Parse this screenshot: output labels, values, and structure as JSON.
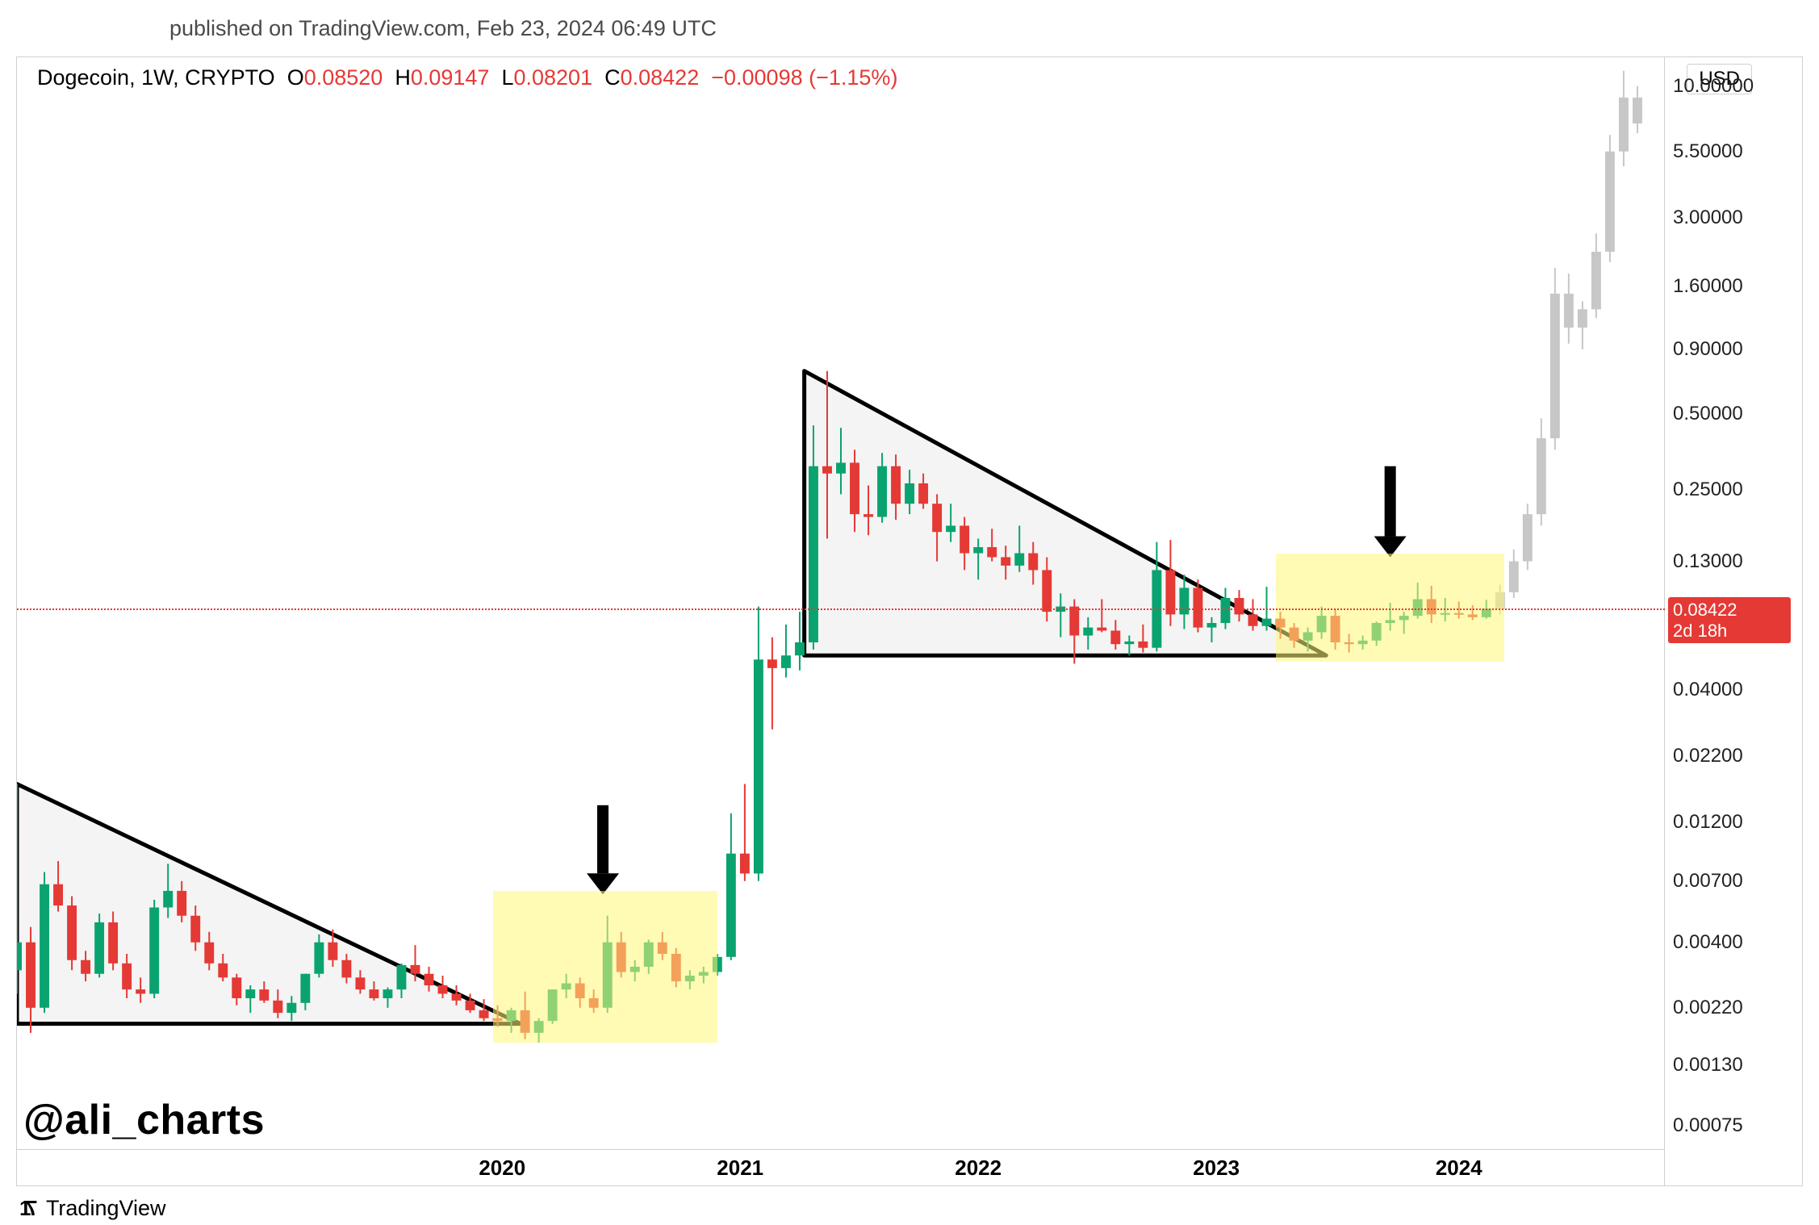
{
  "publish": {
    "text": "published on TradingView.com, Feb 23, 2024 06:49 UTC"
  },
  "header": {
    "symbol": "Dogecoin",
    "timeframe": "1W",
    "exchange": "CRYPTO",
    "o_label": "O",
    "o": "0.08520",
    "h_label": "H",
    "h": "0.09147",
    "l_label": "L",
    "l": "0.08201",
    "c_label": "C",
    "c": "0.08422",
    "change": "−0.00098",
    "change_pct": "(−1.15%)",
    "value_color": "#e53935"
  },
  "currency_badge": "USD",
  "watermark": "@ali_charts",
  "footer_brand": "TradingView",
  "scale": {
    "type": "log",
    "y_min_v": 0.0006,
    "y_max_v": 13.0,
    "yticks": [
      {
        "v": 10.0,
        "label": "10.00000"
      },
      {
        "v": 5.5,
        "label": "5.50000"
      },
      {
        "v": 3.0,
        "label": "3.00000"
      },
      {
        "v": 1.6,
        "label": "1.60000"
      },
      {
        "v": 0.9,
        "label": "0.90000"
      },
      {
        "v": 0.5,
        "label": "0.50000"
      },
      {
        "v": 0.25,
        "label": "0.25000"
      },
      {
        "v": 0.13,
        "label": "0.13000"
      },
      {
        "v": 0.08422,
        "label": "0.08422",
        "is_price": true,
        "sub": "2d 18h"
      },
      {
        "v": 0.04,
        "label": "0.04000"
      },
      {
        "v": 0.022,
        "label": "0.02200"
      },
      {
        "v": 0.012,
        "label": "0.01200"
      },
      {
        "v": 0.007,
        "label": "0.00700"
      },
      {
        "v": 0.004,
        "label": "0.00400"
      },
      {
        "v": 0.0022,
        "label": "0.00220"
      },
      {
        "v": 0.0013,
        "label": "0.00130"
      },
      {
        "v": 0.00075,
        "label": "0.00075"
      }
    ],
    "xticks": [
      {
        "t": 106,
        "label": "2020"
      },
      {
        "t": 158,
        "label": "2021"
      },
      {
        "t": 210,
        "label": "2022"
      },
      {
        "t": 262,
        "label": "2023"
      },
      {
        "t": 315,
        "label": "2024"
      }
    ],
    "t_min": 0,
    "t_max": 360
  },
  "colors": {
    "up": "#0aa36f",
    "down": "#e53935",
    "future": "#c7c7c7",
    "triangle_fill": "rgba(230,230,230,0.45)",
    "triangle_stroke": "#000000",
    "highlight": "rgba(255,247,120,0.55)",
    "arrow": "#000000",
    "grid": "#d0d0d0",
    "price_tag_bg": "#e53935",
    "price_tag_fg": "#ffffff"
  },
  "highlights": [
    {
      "t0": 104,
      "t1": 153,
      "v_lo": 0.0016,
      "v_hi": 0.0064
    },
    {
      "t0": 275,
      "t1": 325,
      "v_lo": 0.052,
      "v_hi": 0.14
    }
  ],
  "triangles": [
    {
      "apex_t": 0,
      "apex_v": 0.017,
      "tip_t": 110,
      "base_v": 0.0019
    },
    {
      "apex_t": 172,
      "apex_v": 0.74,
      "tip_t": 286,
      "base_v": 0.055
    }
  ],
  "arrows": [
    {
      "t": 128,
      "v_top": 0.014,
      "v_bot": 0.0062
    },
    {
      "t": 300,
      "v_top": 0.31,
      "v_bot": 0.135
    }
  ],
  "candles": [
    {
      "t": 0,
      "o": 0.0031,
      "h": 0.017,
      "l": 0.0025,
      "c": 0.004
    },
    {
      "t": 3,
      "o": 0.004,
      "h": 0.0046,
      "l": 0.00175,
      "c": 0.0022
    },
    {
      "t": 6,
      "o": 0.0022,
      "h": 0.0076,
      "l": 0.0021,
      "c": 0.0068
    },
    {
      "t": 9,
      "o": 0.0068,
      "h": 0.0084,
      "l": 0.0053,
      "c": 0.0056
    },
    {
      "t": 12,
      "o": 0.0056,
      "h": 0.0061,
      "l": 0.0031,
      "c": 0.0034
    },
    {
      "t": 15,
      "o": 0.0034,
      "h": 0.0037,
      "l": 0.0028,
      "c": 0.003
    },
    {
      "t": 18,
      "o": 0.003,
      "h": 0.0052,
      "l": 0.0029,
      "c": 0.0048
    },
    {
      "t": 21,
      "o": 0.0048,
      "h": 0.0053,
      "l": 0.0031,
      "c": 0.0033
    },
    {
      "t": 24,
      "o": 0.0033,
      "h": 0.0036,
      "l": 0.0024,
      "c": 0.0026
    },
    {
      "t": 27,
      "o": 0.0026,
      "h": 0.0029,
      "l": 0.0023,
      "c": 0.0025
    },
    {
      "t": 30,
      "o": 0.0025,
      "h": 0.0059,
      "l": 0.0024,
      "c": 0.0055
    },
    {
      "t": 33,
      "o": 0.0055,
      "h": 0.0082,
      "l": 0.005,
      "c": 0.0064
    },
    {
      "t": 36,
      "o": 0.0064,
      "h": 0.007,
      "l": 0.0048,
      "c": 0.0051
    },
    {
      "t": 39,
      "o": 0.0051,
      "h": 0.0056,
      "l": 0.0037,
      "c": 0.004
    },
    {
      "t": 42,
      "o": 0.004,
      "h": 0.0044,
      "l": 0.0031,
      "c": 0.0033
    },
    {
      "t": 45,
      "o": 0.0033,
      "h": 0.0036,
      "l": 0.0028,
      "c": 0.0029
    },
    {
      "t": 48,
      "o": 0.0029,
      "h": 0.003,
      "l": 0.00225,
      "c": 0.0024
    },
    {
      "t": 51,
      "o": 0.0024,
      "h": 0.0027,
      "l": 0.0021,
      "c": 0.0026
    },
    {
      "t": 54,
      "o": 0.0026,
      "h": 0.0028,
      "l": 0.0023,
      "c": 0.00235
    },
    {
      "t": 57,
      "o": 0.00235,
      "h": 0.0026,
      "l": 0.002,
      "c": 0.0021
    },
    {
      "t": 60,
      "o": 0.0021,
      "h": 0.00245,
      "l": 0.00195,
      "c": 0.0023
    },
    {
      "t": 63,
      "o": 0.0023,
      "h": 0.003,
      "l": 0.00215,
      "c": 0.003
    },
    {
      "t": 66,
      "o": 0.003,
      "h": 0.0043,
      "l": 0.0029,
      "c": 0.004
    },
    {
      "t": 69,
      "o": 0.004,
      "h": 0.0045,
      "l": 0.0032,
      "c": 0.0034
    },
    {
      "t": 72,
      "o": 0.0034,
      "h": 0.0036,
      "l": 0.00275,
      "c": 0.0029
    },
    {
      "t": 75,
      "o": 0.0029,
      "h": 0.0031,
      "l": 0.0025,
      "c": 0.0026
    },
    {
      "t": 78,
      "o": 0.0026,
      "h": 0.0028,
      "l": 0.00235,
      "c": 0.0024
    },
    {
      "t": 81,
      "o": 0.0024,
      "h": 0.00265,
      "l": 0.0022,
      "c": 0.0026
    },
    {
      "t": 84,
      "o": 0.0026,
      "h": 0.0033,
      "l": 0.0024,
      "c": 0.00325
    },
    {
      "t": 87,
      "o": 0.00325,
      "h": 0.0039,
      "l": 0.0028,
      "c": 0.003
    },
    {
      "t": 90,
      "o": 0.003,
      "h": 0.0032,
      "l": 0.00255,
      "c": 0.0027
    },
    {
      "t": 93,
      "o": 0.0027,
      "h": 0.00295,
      "l": 0.0024,
      "c": 0.0025
    },
    {
      "t": 96,
      "o": 0.0025,
      "h": 0.0027,
      "l": 0.00225,
      "c": 0.00235
    },
    {
      "t": 99,
      "o": 0.00235,
      "h": 0.0025,
      "l": 0.0021,
      "c": 0.00215
    },
    {
      "t": 102,
      "o": 0.00215,
      "h": 0.00238,
      "l": 0.00195,
      "c": 0.002
    },
    {
      "t": 105,
      "o": 0.002,
      "h": 0.00225,
      "l": 0.00185,
      "c": 0.00195
    },
    {
      "t": 108,
      "o": 0.00195,
      "h": 0.0022,
      "l": 0.00175,
      "c": 0.00215
    },
    {
      "t": 111,
      "o": 0.00215,
      "h": 0.00255,
      "l": 0.00165,
      "c": 0.00175
    },
    {
      "t": 114,
      "o": 0.00175,
      "h": 0.002,
      "l": 0.0016,
      "c": 0.00195
    },
    {
      "t": 117,
      "o": 0.00195,
      "h": 0.0026,
      "l": 0.0019,
      "c": 0.0026
    },
    {
      "t": 120,
      "o": 0.0026,
      "h": 0.003,
      "l": 0.0024,
      "c": 0.00275
    },
    {
      "t": 123,
      "o": 0.00275,
      "h": 0.0029,
      "l": 0.0022,
      "c": 0.0024
    },
    {
      "t": 126,
      "o": 0.0024,
      "h": 0.0026,
      "l": 0.0021,
      "c": 0.0022
    },
    {
      "t": 129,
      "o": 0.0022,
      "h": 0.0051,
      "l": 0.0021,
      "c": 0.004
    },
    {
      "t": 132,
      "o": 0.004,
      "h": 0.0044,
      "l": 0.0029,
      "c": 0.00305
    },
    {
      "t": 135,
      "o": 0.00305,
      "h": 0.0034,
      "l": 0.0028,
      "c": 0.0032
    },
    {
      "t": 138,
      "o": 0.0032,
      "h": 0.0041,
      "l": 0.003,
      "c": 0.004
    },
    {
      "t": 141,
      "o": 0.004,
      "h": 0.0044,
      "l": 0.0034,
      "c": 0.0036
    },
    {
      "t": 144,
      "o": 0.0036,
      "h": 0.0038,
      "l": 0.00265,
      "c": 0.0028
    },
    {
      "t": 147,
      "o": 0.0028,
      "h": 0.0031,
      "l": 0.0026,
      "c": 0.00295
    },
    {
      "t": 150,
      "o": 0.00295,
      "h": 0.0032,
      "l": 0.00275,
      "c": 0.00305
    },
    {
      "t": 153,
      "o": 0.00305,
      "h": 0.0036,
      "l": 0.00295,
      "c": 0.0035
    },
    {
      "t": 156,
      "o": 0.0035,
      "h": 0.013,
      "l": 0.0034,
      "c": 0.009
    },
    {
      "t": 159,
      "o": 0.009,
      "h": 0.017,
      "l": 0.007,
      "c": 0.0075
    },
    {
      "t": 162,
      "o": 0.0075,
      "h": 0.086,
      "l": 0.007,
      "c": 0.053
    },
    {
      "t": 165,
      "o": 0.053,
      "h": 0.065,
      "l": 0.028,
      "c": 0.049
    },
    {
      "t": 168,
      "o": 0.049,
      "h": 0.073,
      "l": 0.045,
      "c": 0.055
    },
    {
      "t": 171,
      "o": 0.055,
      "h": 0.082,
      "l": 0.048,
      "c": 0.062
    },
    {
      "t": 174,
      "o": 0.062,
      "h": 0.45,
      "l": 0.058,
      "c": 0.31
    },
    {
      "t": 177,
      "o": 0.31,
      "h": 0.74,
      "l": 0.16,
      "c": 0.29
    },
    {
      "t": 180,
      "o": 0.29,
      "h": 0.44,
      "l": 0.24,
      "c": 0.32
    },
    {
      "t": 183,
      "o": 0.32,
      "h": 0.36,
      "l": 0.17,
      "c": 0.2
    },
    {
      "t": 186,
      "o": 0.2,
      "h": 0.26,
      "l": 0.165,
      "c": 0.195
    },
    {
      "t": 189,
      "o": 0.195,
      "h": 0.35,
      "l": 0.185,
      "c": 0.31
    },
    {
      "t": 192,
      "o": 0.31,
      "h": 0.345,
      "l": 0.19,
      "c": 0.22
    },
    {
      "t": 195,
      "o": 0.22,
      "h": 0.3,
      "l": 0.2,
      "c": 0.265
    },
    {
      "t": 198,
      "o": 0.265,
      "h": 0.29,
      "l": 0.21,
      "c": 0.22
    },
    {
      "t": 201,
      "o": 0.22,
      "h": 0.24,
      "l": 0.13,
      "c": 0.17
    },
    {
      "t": 204,
      "o": 0.17,
      "h": 0.22,
      "l": 0.155,
      "c": 0.18
    },
    {
      "t": 207,
      "o": 0.18,
      "h": 0.195,
      "l": 0.12,
      "c": 0.14
    },
    {
      "t": 210,
      "o": 0.14,
      "h": 0.16,
      "l": 0.11,
      "c": 0.148
    },
    {
      "t": 213,
      "o": 0.148,
      "h": 0.175,
      "l": 0.13,
      "c": 0.135
    },
    {
      "t": 216,
      "o": 0.135,
      "h": 0.15,
      "l": 0.11,
      "c": 0.125
    },
    {
      "t": 219,
      "o": 0.125,
      "h": 0.18,
      "l": 0.118,
      "c": 0.14
    },
    {
      "t": 222,
      "o": 0.14,
      "h": 0.155,
      "l": 0.105,
      "c": 0.12
    },
    {
      "t": 225,
      "o": 0.12,
      "h": 0.135,
      "l": 0.075,
      "c": 0.082
    },
    {
      "t": 228,
      "o": 0.082,
      "h": 0.097,
      "l": 0.065,
      "c": 0.086
    },
    {
      "t": 231,
      "o": 0.086,
      "h": 0.092,
      "l": 0.051,
      "c": 0.066
    },
    {
      "t": 234,
      "o": 0.066,
      "h": 0.078,
      "l": 0.058,
      "c": 0.071
    },
    {
      "t": 237,
      "o": 0.071,
      "h": 0.092,
      "l": 0.068,
      "c": 0.069
    },
    {
      "t": 240,
      "o": 0.069,
      "h": 0.076,
      "l": 0.058,
      "c": 0.061
    },
    {
      "t": 243,
      "o": 0.061,
      "h": 0.066,
      "l": 0.055,
      "c": 0.0625
    },
    {
      "t": 246,
      "o": 0.0625,
      "h": 0.073,
      "l": 0.0565,
      "c": 0.059
    },
    {
      "t": 249,
      "o": 0.059,
      "h": 0.155,
      "l": 0.057,
      "c": 0.12
    },
    {
      "t": 252,
      "o": 0.12,
      "h": 0.158,
      "l": 0.072,
      "c": 0.08
    },
    {
      "t": 255,
      "o": 0.08,
      "h": 0.115,
      "l": 0.07,
      "c": 0.102
    },
    {
      "t": 258,
      "o": 0.102,
      "h": 0.11,
      "l": 0.068,
      "c": 0.071
    },
    {
      "t": 261,
      "o": 0.071,
      "h": 0.078,
      "l": 0.062,
      "c": 0.074
    },
    {
      "t": 264,
      "o": 0.074,
      "h": 0.102,
      "l": 0.07,
      "c": 0.093
    },
    {
      "t": 267,
      "o": 0.093,
      "h": 0.1,
      "l": 0.075,
      "c": 0.08
    },
    {
      "t": 270,
      "o": 0.08,
      "h": 0.092,
      "l": 0.069,
      "c": 0.072
    },
    {
      "t": 273,
      "o": 0.072,
      "h": 0.103,
      "l": 0.069,
      "c": 0.077
    },
    {
      "t": 276,
      "o": 0.077,
      "h": 0.082,
      "l": 0.064,
      "c": 0.071
    },
    {
      "t": 279,
      "o": 0.071,
      "h": 0.074,
      "l": 0.059,
      "c": 0.063
    },
    {
      "t": 282,
      "o": 0.063,
      "h": 0.071,
      "l": 0.057,
      "c": 0.068
    },
    {
      "t": 285,
      "o": 0.068,
      "h": 0.086,
      "l": 0.064,
      "c": 0.079
    },
    {
      "t": 288,
      "o": 0.079,
      "h": 0.084,
      "l": 0.058,
      "c": 0.062
    },
    {
      "t": 291,
      "o": 0.062,
      "h": 0.067,
      "l": 0.0565,
      "c": 0.061
    },
    {
      "t": 294,
      "o": 0.061,
      "h": 0.066,
      "l": 0.058,
      "c": 0.063
    },
    {
      "t": 297,
      "o": 0.063,
      "h": 0.075,
      "l": 0.06,
      "c": 0.074
    },
    {
      "t": 300,
      "o": 0.074,
      "h": 0.089,
      "l": 0.069,
      "c": 0.076
    },
    {
      "t": 303,
      "o": 0.076,
      "h": 0.082,
      "l": 0.067,
      "c": 0.079
    },
    {
      "t": 306,
      "o": 0.079,
      "h": 0.107,
      "l": 0.077,
      "c": 0.092
    },
    {
      "t": 309,
      "o": 0.092,
      "h": 0.104,
      "l": 0.074,
      "c": 0.08
    },
    {
      "t": 312,
      "o": 0.08,
      "h": 0.093,
      "l": 0.075,
      "c": 0.081
    },
    {
      "t": 315,
      "o": 0.081,
      "h": 0.09,
      "l": 0.077,
      "c": 0.08
    },
    {
      "t": 318,
      "o": 0.08,
      "h": 0.087,
      "l": 0.076,
      "c": 0.078
    },
    {
      "t": 321,
      "o": 0.078,
      "h": 0.09147,
      "l": 0.077,
      "c": 0.08422
    },
    {
      "t": 324,
      "o": 0.08422,
      "h": 0.105,
      "l": 0.08,
      "c": 0.098,
      "future": true
    },
    {
      "t": 327,
      "o": 0.098,
      "h": 0.145,
      "l": 0.093,
      "c": 0.13,
      "future": true
    },
    {
      "t": 330,
      "o": 0.13,
      "h": 0.22,
      "l": 0.12,
      "c": 0.2,
      "future": true
    },
    {
      "t": 333,
      "o": 0.2,
      "h": 0.48,
      "l": 0.18,
      "c": 0.4,
      "future": true
    },
    {
      "t": 336,
      "o": 0.4,
      "h": 1.9,
      "l": 0.36,
      "c": 1.5,
      "future": true
    },
    {
      "t": 339,
      "o": 1.5,
      "h": 1.8,
      "l": 0.95,
      "c": 1.1,
      "future": true
    },
    {
      "t": 342,
      "o": 1.1,
      "h": 1.4,
      "l": 0.9,
      "c": 1.3,
      "future": true
    },
    {
      "t": 345,
      "o": 1.3,
      "h": 2.6,
      "l": 1.2,
      "c": 2.2,
      "future": true
    },
    {
      "t": 348,
      "o": 2.2,
      "h": 6.4,
      "l": 2.0,
      "c": 5.5,
      "future": true
    },
    {
      "t": 351,
      "o": 5.5,
      "h": 11.5,
      "l": 4.8,
      "c": 9.0,
      "future": true
    },
    {
      "t": 354,
      "o": 9.0,
      "h": 10.0,
      "l": 6.5,
      "c": 7.1,
      "future": true
    }
  ]
}
